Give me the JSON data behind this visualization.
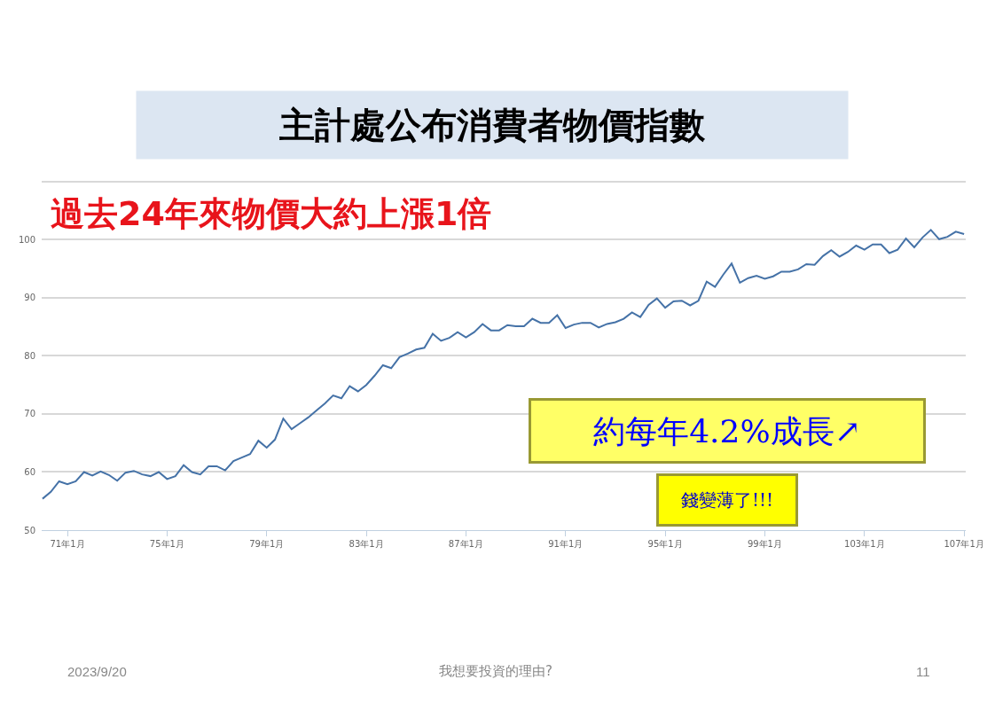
{
  "chart_data": {
    "type": "line",
    "title": "主計處公布消費者物價指數",
    "subtitle": "過去24年來物價大約上漲1倍",
    "categories": [
      null,
      null,
      null,
      "71年1月",
      null,
      null,
      null,
      null,
      null,
      null,
      null,
      null,
      null,
      null,
      null,
      "75年1月",
      null,
      null,
      null,
      null,
      null,
      null,
      null,
      null,
      null,
      null,
      null,
      "79年1月",
      null,
      null,
      null,
      null,
      null,
      null,
      null,
      null,
      null,
      null,
      null,
      "83年1月",
      null,
      null,
      null,
      null,
      null,
      null,
      null,
      null,
      null,
      null,
      null,
      "87年1月",
      null,
      null,
      null,
      null,
      null,
      null,
      null,
      null,
      null,
      null,
      null,
      "91年1月",
      null,
      null,
      null,
      null,
      null,
      null,
      null,
      null,
      null,
      null,
      null,
      "95年1月",
      null,
      null,
      null,
      null,
      null,
      null,
      null,
      null,
      null,
      null,
      null,
      "99年1月",
      null,
      null,
      null,
      null,
      null,
      null,
      null,
      null,
      null,
      null,
      null,
      "103年1月",
      null,
      null,
      null,
      null,
      null,
      null,
      null,
      null,
      null,
      null,
      null,
      "107年1月"
    ],
    "series": [
      {
        "color": "#4572a7",
        "values": [
          55.4,
          56.6,
          58.4,
          57.9,
          58.4,
          60.0,
          59.4,
          60.1,
          59.5,
          58.5,
          59.9,
          60.2,
          59.6,
          59.3,
          60.0,
          58.8,
          59.3,
          61.2,
          60.0,
          59.6,
          61.0,
          61.0,
          60.3,
          61.9,
          62.5,
          63.1,
          65.4,
          64.2,
          65.6,
          69.2,
          67.4,
          68.4,
          69.4,
          70.6,
          71.8,
          73.2,
          72.7,
          74.8,
          73.9,
          75.0,
          76.6,
          78.4,
          77.9,
          79.8,
          80.4,
          81.1,
          81.4,
          83.8,
          82.6,
          83.1,
          84.1,
          83.2,
          84.1,
          85.5,
          84.4,
          84.4,
          85.3,
          85.1,
          85.1,
          86.4,
          85.7,
          85.7,
          87.0,
          84.8,
          85.4,
          85.7,
          85.7,
          84.9,
          85.5,
          85.8,
          86.4,
          87.5,
          86.7,
          88.8,
          89.9,
          88.3,
          89.4,
          89.5,
          88.7,
          89.5,
          92.8,
          91.9,
          94.0,
          95.9,
          92.6,
          93.4,
          93.8,
          93.3,
          93.7,
          94.5,
          94.5,
          94.9,
          95.8,
          95.7,
          97.2,
          98.2,
          97.1,
          97.9,
          99.0,
          98.3,
          99.2,
          99.2,
          97.7,
          98.3,
          100.2,
          98.7,
          100.4,
          101.7,
          100.1,
          100.5,
          101.4,
          101.0
        ]
      }
    ],
    "ylim": [
      50,
      110.3
    ],
    "yticks": [
      50,
      60,
      70,
      80,
      90,
      100,
      {
        "value": 110,
        "label": null
      }
    ],
    "grid": "y",
    "marker": "none",
    "line_style": "solid",
    "annotations": [
      "約每年4.2%成長↗",
      "錢變薄了!!!",
      "2023/9/20",
      "我想要投資的理由?",
      "11"
    ]
  }
}
